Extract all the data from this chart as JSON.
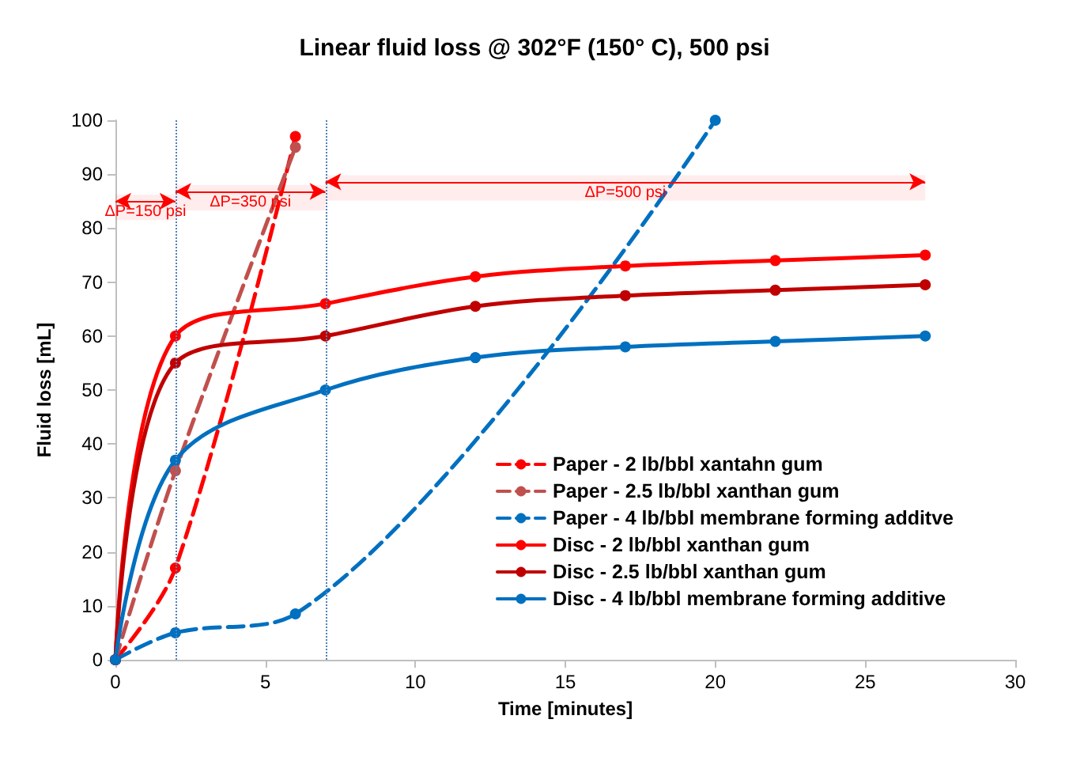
{
  "chart_data": {
    "type": "line",
    "title": "Linear fluid loss @ 302°F (150° C), 500 psi",
    "xlabel": "Time [minutes]",
    "ylabel": "Fluid loss [mL]",
    "xlim": [
      0,
      30
    ],
    "xticks": [
      0,
      5,
      10,
      15,
      20,
      25,
      30
    ],
    "ylim": [
      0,
      100
    ],
    "yticks": [
      0,
      10,
      20,
      30,
      40,
      50,
      60,
      70,
      80,
      90,
      100
    ],
    "grid": false,
    "legend": "bottom right",
    "marker": "circle",
    "series": [
      {
        "name": "Paper - 2 lb/bbl xantahn gum",
        "color": "#ff0000",
        "line_style": "dashed",
        "x": [
          0,
          2,
          6
        ],
        "values": [
          0,
          17,
          97
        ]
      },
      {
        "name": "Paper - 2.5 lb/bbl xanthan gum",
        "color": "#c0504d",
        "line_style": "dashed",
        "x": [
          0,
          2,
          6
        ],
        "values": [
          0,
          35,
          95
        ]
      },
      {
        "name": "Paper - 4 lb/bbl membrane forming additve",
        "color": "#0070c0",
        "line_style": "dashed",
        "x": [
          0,
          2,
          6,
          20
        ],
        "values": [
          0,
          5,
          8.5,
          100
        ]
      },
      {
        "name": "Disc - 2 lb/bbl xanthan gum",
        "color": "#ff0000",
        "line_style": "solid",
        "x": [
          0,
          2,
          7,
          12,
          17,
          22,
          27
        ],
        "values": [
          0,
          60,
          66,
          71,
          73,
          74,
          75
        ]
      },
      {
        "name": "Disc - 2.5 lb/bbl xanthan gum",
        "color": "#c00000",
        "line_style": "solid",
        "x": [
          0,
          2,
          7,
          12,
          17,
          22,
          27
        ],
        "values": [
          0,
          55,
          60,
          65.5,
          67.5,
          68.5,
          69.5
        ]
      },
      {
        "name": "Disc - 4 lb/bbl membrane forming additive",
        "color": "#0070c0",
        "line_style": "solid",
        "x": [
          0,
          2,
          7,
          12,
          17,
          22,
          27
        ],
        "values": [
          0,
          37,
          50,
          56,
          58,
          59,
          60
        ]
      }
    ],
    "ref_lines": [
      {
        "axis": "x",
        "value": 2,
        "color": "#4f81bd",
        "line_style": "dotted"
      },
      {
        "axis": "x",
        "value": 7,
        "color": "#4f81bd",
        "line_style": "dotted"
      }
    ],
    "bands": [
      {
        "axis": "x",
        "from": 0,
        "to": 2,
        "label": "ΔP=150 psi",
        "color": "#ff0000"
      },
      {
        "axis": "x",
        "from": 2,
        "to": 7,
        "label": "ΔP=350 psi",
        "color": "#ff0000"
      },
      {
        "axis": "x",
        "from": 7,
        "to": 27,
        "label": "ΔP=500 psi",
        "color": "#ff0000"
      }
    ]
  }
}
